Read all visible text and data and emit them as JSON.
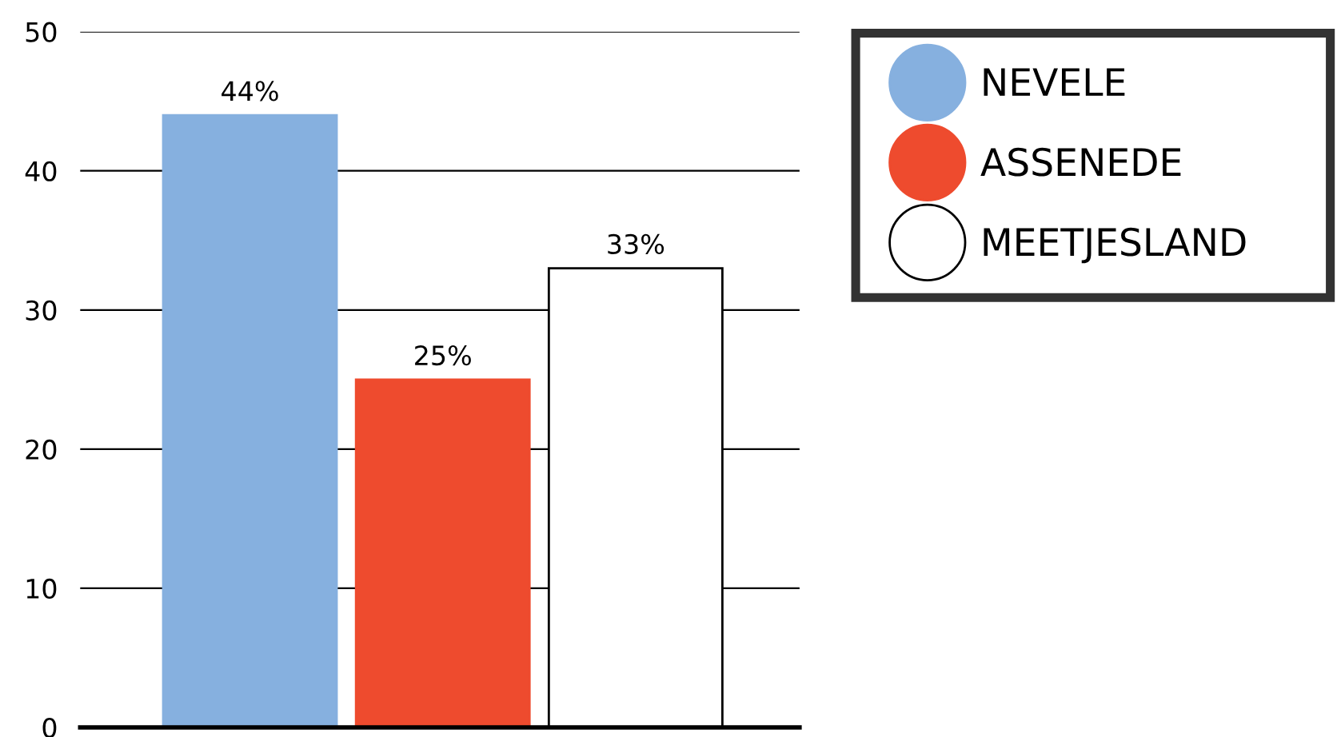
{
  "chart_data": {
    "type": "bar",
    "categories": [
      null,
      null,
      null
    ],
    "series": [
      {
        "name": "NEVELE",
        "color": "#86b0df",
        "values": [
          44,
          null,
          null
        ],
        "value_labels": [
          "44%",
          null,
          null
        ]
      },
      {
        "name": "ASSENEDE",
        "color": "#ee4b2e",
        "values": [
          null,
          25,
          null
        ],
        "value_labels": [
          null,
          "25%",
          null
        ]
      },
      {
        "name": "MEETJESLAND",
        "color": "#ffffff",
        "values": [
          null,
          null,
          33
        ],
        "value_labels": [
          null,
          null,
          "33%"
        ]
      }
    ],
    "ylim": [
      0,
      50
    ],
    "yticks": [
      0,
      10,
      20,
      30,
      40,
      50
    ],
    "grid": "y",
    "legend": "right",
    "tick_labels": "y"
  }
}
